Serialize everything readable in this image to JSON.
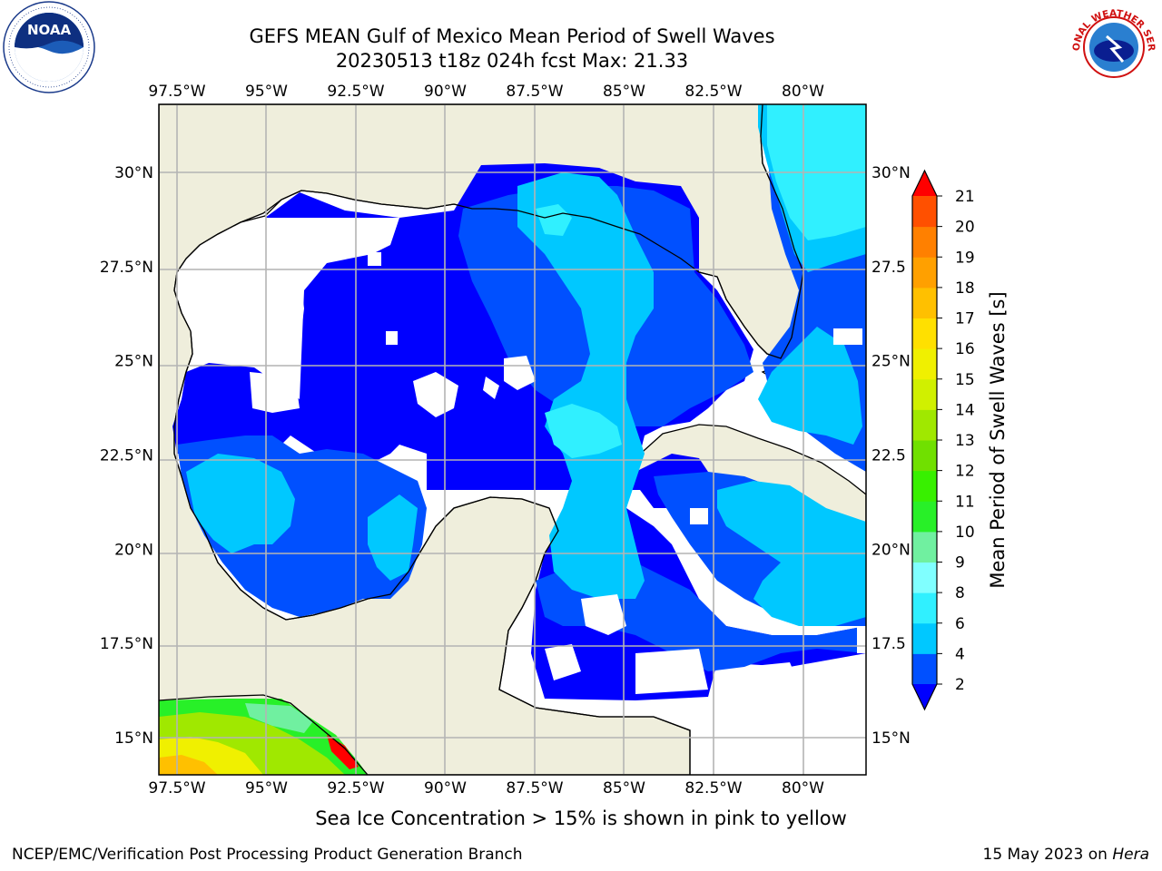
{
  "header": {
    "title_line1": "GEFS MEAN Gulf of Mexico Mean Period of Swell Waves",
    "title_line2": "20230513 t18z 024h fcst   Max: 21.33"
  },
  "logos": {
    "left": "NOAA",
    "right": "NATIONAL WEATHER SERVICE"
  },
  "footer": {
    "sea_ice_note": "Sea Ice Concentration > 15% is shown in pink to yellow",
    "branch": "NCEP/EMC/Verification Post Processing Product Generation Branch",
    "date_prefix": "15 May 2023 on ",
    "machine": "Hera"
  },
  "chart_data": {
    "type": "heatmap",
    "title": "GEFS MEAN Gulf of Mexico Mean Period of Swell Waves",
    "subtitle": "20230513 t18z 024h fcst   Max: 21.33",
    "x_ticks": [
      "97.5°W",
      "95°W",
      "92.5°W",
      "90°W",
      "87.5°W",
      "85°W",
      "82.5°W",
      "80°W"
    ],
    "x_tick_values": [
      -97.5,
      -95,
      -92.5,
      -90,
      -87.5,
      -85,
      -82.5,
      -80
    ],
    "y_ticks_left": [
      "30°N",
      "27.5°N",
      "25°N",
      "22.5°N",
      "20°N",
      "17.5°N",
      "15°N"
    ],
    "y_ticks_right": [
      "30°N",
      "27.5",
      "25°N",
      "22.5",
      "20°N",
      "17.5",
      "15°N"
    ],
    "y_tick_values": [
      30,
      27.5,
      25,
      22.5,
      20,
      17.5,
      15
    ],
    "xlim": [
      -98,
      -78.3
    ],
    "ylim": [
      14,
      31.7
    ],
    "grid": true,
    "colorbar": {
      "label": "Mean Period of Swell Waves [s]",
      "ticks": [
        2,
        4,
        6,
        8,
        9,
        10,
        11,
        12,
        13,
        14,
        15,
        16,
        17,
        18,
        19,
        20,
        21
      ],
      "colors": [
        "#0050ff",
        "#00c8ff",
        "#30f0ff",
        "#80ffff",
        "#70f0a0",
        "#28f028",
        "#38f000",
        "#70e000",
        "#a0e800",
        "#d0f000",
        "#f0f000",
        "#ffe000",
        "#ffc000",
        "#ffa000",
        "#ff8000",
        "#ff5000"
      ],
      "extend_low": "#0000ff",
      "extend_high": "#ff0000"
    }
  }
}
